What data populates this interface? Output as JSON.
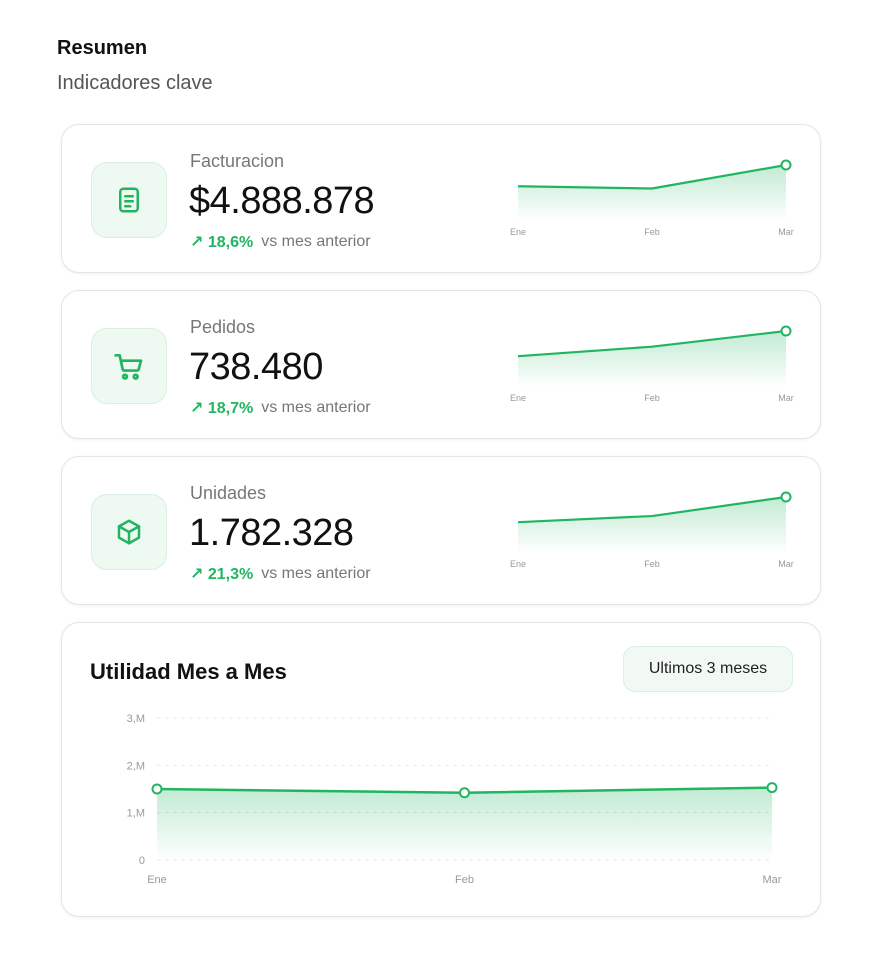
{
  "header": {
    "title": "Resumen",
    "subtitle": "Indicadores clave"
  },
  "colors": {
    "accent": "#22b561",
    "icon_bg": "#eef9f2",
    "muted_text": "#777777"
  },
  "kpis": [
    {
      "label": "Facturacion",
      "value": "$4.888.878",
      "delta": "↗ 18,6%",
      "delta_text": "vs mes anterior",
      "icon": "document-icon",
      "sparkline": {
        "x": [
          "Ene",
          "Feb",
          "Mar"
        ],
        "y": [
          0.62,
          0.58,
          1.0
        ]
      }
    },
    {
      "label": "Pedidos",
      "value": "738.480",
      "delta": "↗ 18,7%",
      "delta_text": "vs mes anterior",
      "icon": "shopping-cart-icon",
      "sparkline": {
        "x": [
          "Ene",
          "Feb",
          "Mar"
        ],
        "y": [
          0.55,
          0.72,
          1.0
        ]
      }
    },
    {
      "label": "Unidades",
      "value": "1.782.328",
      "delta": "↗ 21,3%",
      "delta_text": "vs mes anterior",
      "icon": "box-icon",
      "sparkline": {
        "x": [
          "Ene",
          "Feb",
          "Mar"
        ],
        "y": [
          0.55,
          0.66,
          1.0
        ]
      }
    }
  ],
  "profit": {
    "title": "Utilidad Mes a Mes",
    "range_label": "Ultimos 3 meses"
  },
  "chart_data": {
    "type": "area",
    "title": "Utilidad Mes a Mes",
    "x": [
      "Ene",
      "Feb",
      "Mar"
    ],
    "series": [
      {
        "values": [
          1.5,
          1.42,
          1.53
        ]
      }
    ],
    "y_ticks": [
      0,
      1,
      2,
      3
    ],
    "y_tick_labels": [
      "0",
      "1,M",
      "2,M",
      "3,M"
    ],
    "ylim": [
      0,
      3
    ],
    "grid": true,
    "color": "#22b561"
  }
}
